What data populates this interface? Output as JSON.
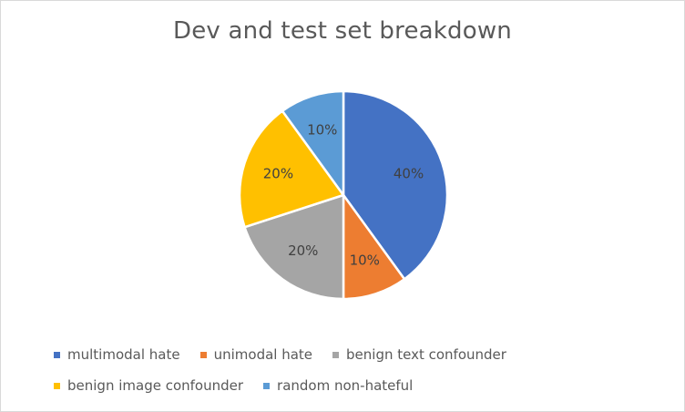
{
  "chart_data": {
    "type": "pie",
    "title": "Dev and test set breakdown",
    "categories": [
      "multimodal hate",
      "unimodal hate",
      "benign text confounder",
      "benign image confounder",
      "random non-hateful"
    ],
    "values": [
      40,
      10,
      20,
      20,
      10
    ],
    "data_labels": [
      "40%",
      "10%",
      "20%",
      "20%",
      "10%"
    ],
    "colors": [
      "#4472c4",
      "#ed7d31",
      "#a5a5a5",
      "#ffc000",
      "#5b9bd5"
    ],
    "start_angle_deg": 0,
    "direction": "clockwise",
    "legend_position": "bottom"
  }
}
